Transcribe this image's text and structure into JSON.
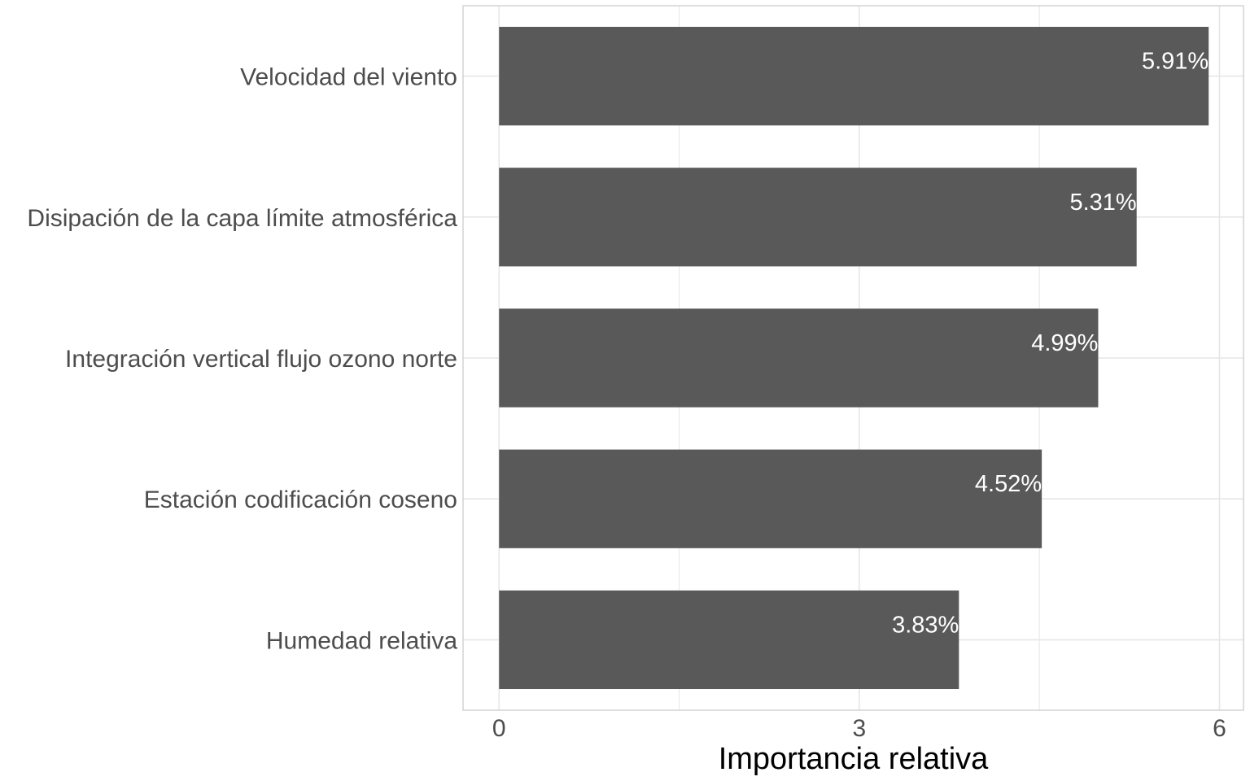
{
  "chart_data": {
    "type": "bar",
    "orientation": "horizontal",
    "categories": [
      "Velocidad del viento",
      "Disipación de la capa límite atmosférica",
      "Integración vertical flujo ozono norte",
      "Estación codificación coseno",
      "Humedad relativa"
    ],
    "values": [
      5.91,
      5.31,
      4.99,
      4.52,
      3.83
    ],
    "value_labels": [
      "5.91%",
      "5.31%",
      "4.99%",
      "4.52%",
      "3.83%"
    ],
    "xlabel": "Importancia relativa",
    "ylabel": "",
    "xlim": [
      -0.3,
      6.2
    ],
    "xticks": [
      0,
      3,
      6
    ],
    "xtick_labels": [
      "0",
      "3",
      "6"
    ],
    "grid": true,
    "colors": {
      "bar": "#595959",
      "grid": "#e6e6e6",
      "panel_border": "#cccccc",
      "bar_label": "#ffffff"
    }
  }
}
